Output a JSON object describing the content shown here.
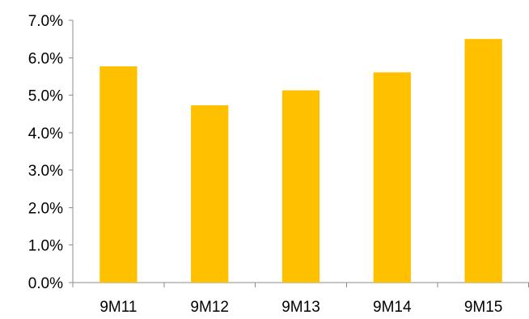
{
  "chart_data": {
    "type": "bar",
    "title": "",
    "xlabel": "",
    "ylabel": "",
    "categories": [
      "9M11",
      "9M12",
      "9M13",
      "9M14",
      "9M15"
    ],
    "values": [
      5.77,
      4.73,
      5.13,
      5.61,
      6.5
    ],
    "ylim": [
      0,
      7
    ],
    "yticks": [
      0,
      1,
      2,
      3,
      4,
      5,
      6,
      7
    ],
    "ytick_labels": [
      "0.0%",
      "1.0%",
      "2.0%",
      "3.0%",
      "4.0%",
      "5.0%",
      "6.0%",
      "7.0%"
    ],
    "grid": false,
    "legend": "none",
    "bar_color": "#FFC000",
    "axis_color": "#8C8C8C"
  }
}
